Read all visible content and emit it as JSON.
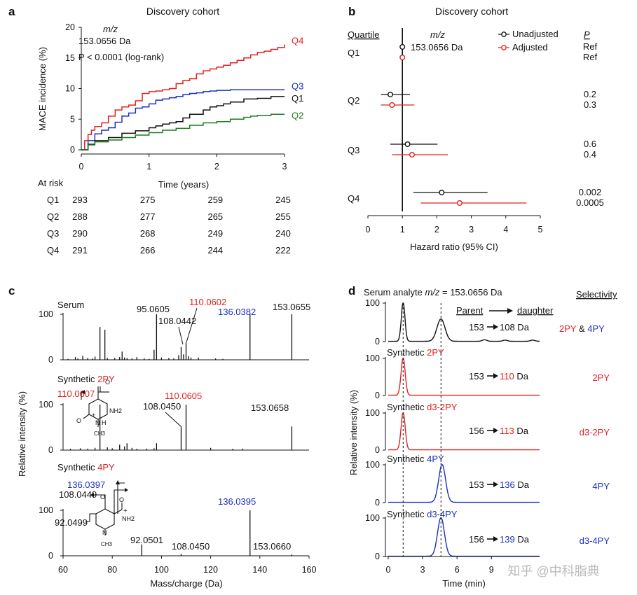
{
  "colors": {
    "red": "#e02020",
    "blue": "#1c2fc0",
    "green": "#1f7a1f",
    "black": "#111111"
  },
  "panels": {
    "a": "a",
    "b": "b",
    "c": "c",
    "d": "d"
  },
  "chart_data": [
    {
      "panel": "a",
      "type": "line",
      "title": "Discovery cohort",
      "xlabel": "Time (years)",
      "ylabel": "MACE incidence (%)",
      "xlim": [
        0,
        3
      ],
      "ylim": [
        0,
        20
      ],
      "xticks": [
        "0",
        "1",
        "2",
        "3"
      ],
      "yticks": [
        "0",
        "5",
        "10",
        "15",
        "20"
      ],
      "annot_mz": "m/z",
      "annot_mass": "153.0656 Da",
      "annot_p": "P < 0.0001 (log-rank)",
      "series": [
        {
          "name": "Q4",
          "color": "#e02020",
          "x": [
            0,
            0.05,
            0.1,
            0.15,
            0.2,
            0.3,
            0.4,
            0.5,
            0.6,
            0.7,
            0.8,
            0.9,
            1.0,
            1.1,
            1.2,
            1.3,
            1.4,
            1.5,
            1.6,
            1.7,
            1.8,
            1.9,
            2.0,
            2.1,
            2.2,
            2.3,
            2.4,
            2.5,
            2.6,
            2.7,
            2.8,
            2.9,
            3.0
          ],
          "y": [
            0,
            1.5,
            2.5,
            3.2,
            3.8,
            4.4,
            5.5,
            6.5,
            7.0,
            7.3,
            8.0,
            9.2,
            9.5,
            9.6,
            9.8,
            10.0,
            10.8,
            11.3,
            11.6,
            12.4,
            12.9,
            13.2,
            13.5,
            13.8,
            14.2,
            14.6,
            15.0,
            15.5,
            15.9,
            16.1,
            16.4,
            16.7,
            17.2
          ]
        },
        {
          "name": "Q3",
          "color": "#1c2fc0",
          "x": [
            0,
            0.1,
            0.2,
            0.3,
            0.4,
            0.5,
            0.6,
            0.7,
            0.8,
            0.9,
            1.0,
            1.1,
            1.2,
            1.3,
            1.4,
            1.5,
            1.6,
            1.7,
            1.8,
            1.9,
            2.0,
            2.2,
            2.5,
            3.0
          ],
          "y": [
            0,
            1.5,
            2.6,
            3.2,
            3.6,
            4.5,
            5.5,
            6.0,
            6.8,
            7.0,
            7.5,
            8.1,
            8.3,
            8.5,
            8.7,
            9.0,
            9.2,
            9.3,
            9.5,
            9.6,
            9.7,
            9.8,
            9.8,
            9.8
          ]
        },
        {
          "name": "Q1",
          "color": "#111111",
          "x": [
            0,
            0.1,
            0.2,
            0.4,
            0.6,
            0.8,
            1.0,
            1.1,
            1.2,
            1.3,
            1.4,
            1.5,
            1.6,
            1.8,
            1.9,
            2.0,
            2.1,
            2.2,
            2.4,
            2.6,
            2.8,
            3.0
          ],
          "y": [
            0,
            0.9,
            1.5,
            2.0,
            2.7,
            3.1,
            3.6,
            3.9,
            4.2,
            4.4,
            4.6,
            5.2,
            5.8,
            6.5,
            7.0,
            7.2,
            7.5,
            7.8,
            8.3,
            8.4,
            8.7,
            8.7
          ]
        },
        {
          "name": "Q2",
          "color": "#1f7a1f",
          "x": [
            0,
            0.1,
            0.2,
            0.4,
            0.6,
            0.8,
            1.0,
            1.2,
            1.4,
            1.6,
            1.8,
            2.0,
            2.2,
            2.4,
            2.5,
            2.6,
            2.8,
            3.0
          ],
          "y": [
            0,
            0.8,
            1.3,
            1.6,
            2.0,
            2.4,
            2.8,
            3.2,
            3.5,
            4.0,
            4.4,
            4.6,
            5.0,
            5.3,
            5.5,
            5.6,
            5.8,
            5.8
          ]
        }
      ],
      "at_risk_label": "At risk",
      "at_risk": [
        {
          "q": "Q1",
          "vals": [
            "293",
            "275",
            "259",
            "245"
          ]
        },
        {
          "q": "Q2",
          "vals": [
            "288",
            "277",
            "265",
            "255"
          ]
        },
        {
          "q": "Q3",
          "vals": [
            "290",
            "268",
            "249",
            "240"
          ]
        },
        {
          "q": "Q4",
          "vals": [
            "291",
            "266",
            "244",
            "222"
          ]
        }
      ]
    },
    {
      "panel": "b",
      "type": "forest",
      "title": "Discovery cohort",
      "xlabel": "Hazard ratio (95% CI)",
      "xlim": [
        0,
        5
      ],
      "xticks": [
        "0",
        "1",
        "2",
        "3",
        "4",
        "5"
      ],
      "quartile_header": "Quartile",
      "p_header": "P",
      "mz": "m/z",
      "mass": "153.0656 Da",
      "legend": [
        "Unadjusted",
        "Adjusted"
      ],
      "rows": [
        {
          "q": "Q1",
          "unadj": {
            "hr": 1.0,
            "lo": 1.0,
            "hi": 1.0
          },
          "adj": {
            "hr": 1.0,
            "lo": 1.0,
            "hi": 1.0
          },
          "p_unadj": "Ref",
          "p_adj": "Ref"
        },
        {
          "q": "Q2",
          "unadj": {
            "hr": 0.65,
            "lo": 0.38,
            "hi": 1.22
          },
          "adj": {
            "hr": 0.7,
            "lo": 0.38,
            "hi": 1.35
          },
          "p_unadj": "0.2",
          "p_adj": "0.3"
        },
        {
          "q": "Q3",
          "unadj": {
            "hr": 1.15,
            "lo": 0.65,
            "hi": 2.02
          },
          "adj": {
            "hr": 1.28,
            "lo": 0.7,
            "hi": 2.32
          },
          "p_unadj": "0.6",
          "p_adj": "0.4"
        },
        {
          "q": "Q4",
          "unadj": {
            "hr": 2.14,
            "lo": 1.32,
            "hi": 3.47
          },
          "adj": {
            "hr": 2.66,
            "lo": 1.53,
            "hi": 4.6
          },
          "p_unadj": "0.002",
          "p_adj": "0.0005"
        }
      ]
    },
    {
      "panel": "c",
      "type": "bar",
      "xlabel": "Mass/charge (Da)",
      "ylabel": "Relative intensity (%)",
      "xlim": [
        60,
        160
      ],
      "xticks": [
        "60",
        "80",
        "100",
        "120",
        "140",
        "160"
      ],
      "spectra": [
        {
          "name": "Serum",
          "title": "Serum",
          "title_colored": "",
          "peaks": [
            [
              62,
              2
            ],
            [
              65,
              6
            ],
            [
              66,
              3
            ],
            [
              68,
              9
            ],
            [
              70,
              4
            ],
            [
              72,
              3
            ],
            [
              73,
              7
            ],
            [
              75,
              72
            ],
            [
              77,
              66
            ],
            [
              78,
              4
            ],
            [
              81,
              4
            ],
            [
              83,
              6
            ],
            [
              84,
              18
            ],
            [
              85,
              5
            ],
            [
              86,
              4
            ],
            [
              88,
              3
            ],
            [
              90,
              6
            ],
            [
              93,
              3
            ],
            [
              95,
              2
            ],
            [
              97,
              22
            ],
            [
              98,
              100
            ],
            [
              100,
              5
            ],
            [
              103,
              4
            ],
            [
              105,
              3
            ],
            [
              107,
              10
            ],
            [
              108,
              28
            ],
            [
              109,
              12
            ],
            [
              110,
              38
            ],
            [
              111,
              8
            ],
            [
              112,
              5
            ],
            [
              115,
              5
            ],
            [
              122,
              3
            ],
            [
              125,
              2
            ],
            [
              136,
              100
            ],
            [
              153,
              100
            ]
          ],
          "labels": [
            {
              "text": "95.0605",
              "color": "black"
            },
            {
              "text": "108.0442",
              "color": "black"
            },
            {
              "text": "110.0602",
              "color": "red"
            },
            {
              "text": "136.0382",
              "color": "blue"
            },
            {
              "text": "153.0655",
              "color": "black"
            }
          ]
        },
        {
          "name": "Synthetic 2PY",
          "title": "Synthetic ",
          "title_colored": "2PY",
          "peaks": [
            [
              63,
              3
            ],
            [
              67,
              4
            ],
            [
              70,
              3
            ],
            [
              73,
              5
            ],
            [
              75,
              100
            ],
            [
              78,
              6
            ],
            [
              80,
              4
            ],
            [
              83,
              12
            ],
            [
              85,
              8
            ],
            [
              86,
              15
            ],
            [
              88,
              5
            ],
            [
              90,
              3
            ],
            [
              94,
              3
            ],
            [
              97,
              4
            ],
            [
              98,
              15
            ],
            [
              108,
              50
            ],
            [
              110,
              100
            ],
            [
              120,
              5
            ],
            [
              129,
              3
            ],
            [
              133,
              3
            ],
            [
              153,
              52
            ]
          ],
          "labels": [
            {
              "text": "110.0607",
              "color": "red"
            },
            {
              "text": "108.0450",
              "color": "black"
            },
            {
              "text": "110.0605",
              "color": "red"
            },
            {
              "text": "153.0658",
              "color": "black"
            }
          ],
          "struct": [
            "O",
            "N",
            "H",
            "CH3",
            "NH2",
            "O",
            "+"
          ]
        },
        {
          "name": "Synthetic 4PY",
          "title": "Synthetic ",
          "title_colored": "4PY",
          "peaks": [
            [
              92,
              25
            ],
            [
              108,
              4
            ],
            [
              136,
              100
            ],
            [
              153,
              3
            ]
          ],
          "labels": [
            {
              "text": "136.0397",
              "color": "blue"
            },
            {
              "text": "108.0449",
              "color": "black"
            },
            {
              "text": "92.0499",
              "color": "black"
            },
            {
              "text": "92.0501",
              "color": "black"
            },
            {
              "text": "108.0450",
              "color": "black"
            },
            {
              "text": "136.0395",
              "color": "blue"
            },
            {
              "text": "153.0660",
              "color": "black"
            }
          ],
          "struct": [
            "O",
            "O",
            "N",
            "CH3",
            "NH2",
            "+"
          ]
        }
      ],
      "ytick": [
        "100",
        "0"
      ]
    },
    {
      "panel": "d",
      "type": "line",
      "xlabel": "Time (min)",
      "ylabel": "Relative intensity (%)",
      "header": "Serum analyte ",
      "header_mz": "m/z",
      "header_rest": " = 153.0656 Da",
      "selectivity": "Selectivity",
      "parent_daughter": "Parent",
      "daughter": "daughter",
      "xticks": [
        "0",
        "3",
        "6",
        "9"
      ],
      "ytick": [
        "100",
        "0"
      ],
      "traces": [
        {
          "label": "",
          "label_colored": "",
          "color": "#111111",
          "t1": "153",
          "t2": "108 Da",
          "t2_color": "black",
          "sel": "2PY & 4PY",
          "peaks": [
            [
              1.3,
              100,
              0.16
            ],
            [
              4.6,
              58,
              0.35
            ],
            [
              8.4,
              4,
              0.2
            ],
            [
              10.2,
              3,
              0.2
            ],
            [
              12.6,
              3,
              0.2
            ]
          ]
        },
        {
          "label": "Synthetic ",
          "label_colored": "2PY",
          "color": "#e02020",
          "t1": "153",
          "t2": "110",
          "t2_unit": " Da",
          "sel": "2PY",
          "peaks": [
            [
              1.3,
              100,
              0.18
            ]
          ]
        },
        {
          "label": "Synthetic ",
          "label_colored": "d3-2PY",
          "color": "#e02020",
          "t1": "156",
          "t2": "113",
          "t2_unit": " Da",
          "sel": "d3-2PY",
          "peaks": [
            [
              1.3,
              100,
              0.18
            ]
          ]
        },
        {
          "label": "Synthetic ",
          "label_colored": "4PY",
          "color": "#1c2fc0",
          "t1": "153",
          "t2": "136",
          "t2_unit": " Da",
          "sel": "4PY",
          "peaks": [
            [
              4.7,
              100,
              0.3
            ]
          ]
        },
        {
          "label": "Synthetic ",
          "label_colored": "d3-4PY",
          "color": "#1c2fc0",
          "t1": "156",
          "t2": "139",
          "t2_unit": " Da",
          "sel": "d3-4PY",
          "peaks": [
            [
              4.6,
              100,
              0.3
            ]
          ]
        }
      ]
    }
  ],
  "watermark": "知乎 @中科脂典"
}
